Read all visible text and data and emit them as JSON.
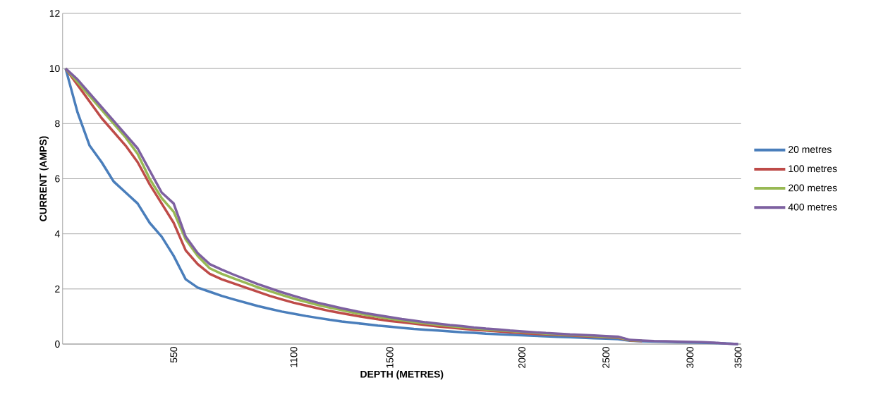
{
  "chart_data": {
    "type": "line",
    "xlabel": "DEPTH (METRES)",
    "ylabel": "CURRENT (AMPS)",
    "categories": [
      null,
      null,
      null,
      null,
      null,
      null,
      null,
      null,
      null,
      "550",
      null,
      null,
      null,
      null,
      null,
      null,
      null,
      null,
      null,
      "1100",
      null,
      null,
      null,
      null,
      null,
      null,
      null,
      "1500",
      null,
      null,
      null,
      null,
      null,
      null,
      null,
      null,
      null,
      null,
      "2000",
      null,
      null,
      null,
      null,
      null,
      null,
      "2500",
      null,
      null,
      null,
      null,
      null,
      null,
      "3000",
      null,
      null,
      null,
      "3500"
    ],
    "ylim": [
      0,
      12
    ],
    "yticks": [
      0,
      2,
      4,
      6,
      8,
      10,
      12
    ],
    "grid": "y",
    "legend": "right",
    "series": [
      {
        "name": "20 metres",
        "color": "#4a7ebb",
        "values": [
          10,
          8.4,
          7.2,
          6.6,
          5.9,
          5.5,
          5.1,
          4.4,
          3.9,
          3.2,
          2.35,
          2.05,
          1.9,
          1.75,
          1.62,
          1.5,
          1.38,
          1.28,
          1.18,
          1.1,
          1.02,
          0.95,
          0.88,
          0.82,
          0.77,
          0.72,
          0.67,
          0.63,
          0.59,
          0.55,
          0.52,
          0.49,
          0.46,
          0.43,
          0.41,
          0.38,
          0.36,
          0.34,
          0.32,
          0.3,
          0.28,
          0.26,
          0.25,
          0.23,
          0.21,
          0.2,
          0.18,
          0.12,
          0.1,
          0.09,
          0.08,
          0.07,
          0.06,
          0.05,
          0.04,
          0.02,
          0
        ]
      },
      {
        "name": "100 metres",
        "color": "#be4b48",
        "values": [
          10,
          9.4,
          8.8,
          8.2,
          7.7,
          7.2,
          6.6,
          5.8,
          5.1,
          4.4,
          3.4,
          2.9,
          2.55,
          2.35,
          2.2,
          2.05,
          1.9,
          1.75,
          1.62,
          1.5,
          1.4,
          1.3,
          1.2,
          1.12,
          1.04,
          0.97,
          0.9,
          0.84,
          0.79,
          0.74,
          0.69,
          0.64,
          0.6,
          0.56,
          0.52,
          0.49,
          0.46,
          0.43,
          0.4,
          0.37,
          0.35,
          0.33,
          0.31,
          0.29,
          0.27,
          0.25,
          0.23,
          0.13,
          0.11,
          null,
          null,
          null,
          null,
          null,
          null,
          null,
          null
        ]
      },
      {
        "name": "200 metres",
        "color": "#98b954",
        "values": [
          10,
          9.5,
          9.0,
          8.5,
          8.0,
          7.5,
          6.9,
          6.0,
          5.3,
          4.8,
          3.8,
          3.2,
          2.75,
          2.55,
          2.38,
          2.22,
          2.06,
          1.92,
          1.78,
          1.65,
          1.53,
          1.42,
          1.32,
          1.23,
          1.14,
          1.06,
          0.99,
          0.92,
          0.86,
          0.8,
          0.75,
          0.7,
          0.65,
          0.61,
          0.57,
          0.53,
          0.5,
          0.47,
          0.44,
          0.41,
          0.38,
          0.36,
          0.33,
          0.31,
          0.29,
          0.27,
          0.25,
          0.14,
          0.12,
          null,
          null,
          null,
          null,
          null,
          null,
          null,
          null
        ]
      },
      {
        "name": "400 metres",
        "color": "#7d60a0",
        "values": [
          10,
          9.6,
          9.1,
          8.6,
          8.1,
          7.6,
          7.1,
          6.3,
          5.5,
          5.1,
          3.9,
          3.3,
          2.9,
          2.7,
          2.52,
          2.35,
          2.18,
          2.03,
          1.88,
          1.75,
          1.62,
          1.5,
          1.4,
          1.3,
          1.21,
          1.12,
          1.05,
          0.98,
          0.91,
          0.85,
          0.79,
          0.74,
          0.69,
          0.65,
          0.6,
          0.56,
          0.53,
          0.49,
          0.46,
          0.43,
          0.4,
          0.38,
          0.35,
          0.33,
          0.31,
          0.29,
          0.27,
          0.15,
          0.13,
          0.11,
          0.1,
          0.09,
          0.08,
          0.07,
          0.05,
          0.02,
          0
        ]
      }
    ]
  }
}
